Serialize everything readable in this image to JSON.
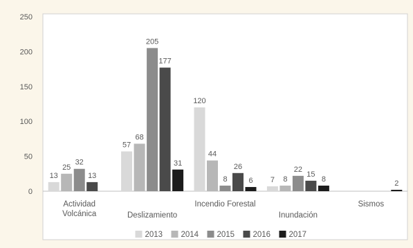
{
  "chart_data": {
    "type": "bar",
    "categories": [
      "Actividad Volcánica",
      "Deslizamiento",
      "Incendio Forestal",
      "Inundación",
      "Sismos"
    ],
    "category_label_lines": [
      [
        "Actividad",
        "Volcánica"
      ],
      [
        "Deslizamiento"
      ],
      [
        "Incendio Forestal"
      ],
      [
        "Inundación"
      ],
      [
        "Sismos"
      ]
    ],
    "series": [
      {
        "name": "2013",
        "values": [
          13,
          57,
          120,
          7,
          null
        ],
        "color": "#d9d9d9"
      },
      {
        "name": "2014",
        "values": [
          25,
          68,
          44,
          8,
          null
        ],
        "color": "#b7b7b7"
      },
      {
        "name": "2015",
        "values": [
          32,
          205,
          8,
          22,
          null
        ],
        "color": "#8c8c8c"
      },
      {
        "name": "2016",
        "values": [
          13,
          177,
          26,
          15,
          null
        ],
        "color": "#4a4a4a"
      },
      {
        "name": "2017",
        "values": [
          null,
          31,
          6,
          8,
          2
        ],
        "color": "#1c1c1c"
      }
    ],
    "data_labels": [
      [
        "13",
        "25",
        "32",
        "13",
        null
      ],
      [
        "57",
        "68",
        "205",
        "177",
        "31"
      ],
      [
        "120",
        "44",
        "8",
        "26",
        "6"
      ],
      [
        "7",
        "8",
        "22",
        "15",
        "8"
      ],
      [
        null,
        null,
        null,
        null,
        "2"
      ]
    ],
    "ylim": [
      0,
      250
    ],
    "yticks": [
      0,
      50,
      100,
      150,
      200,
      250
    ],
    "grid": false,
    "legend_position": "bottom",
    "title": "",
    "xlabel": "",
    "ylabel": ""
  },
  "colors": {
    "background": "#fbf6ea",
    "plot_background": "#ffffff",
    "axis": "#bfbfbf",
    "text": "#595959"
  }
}
